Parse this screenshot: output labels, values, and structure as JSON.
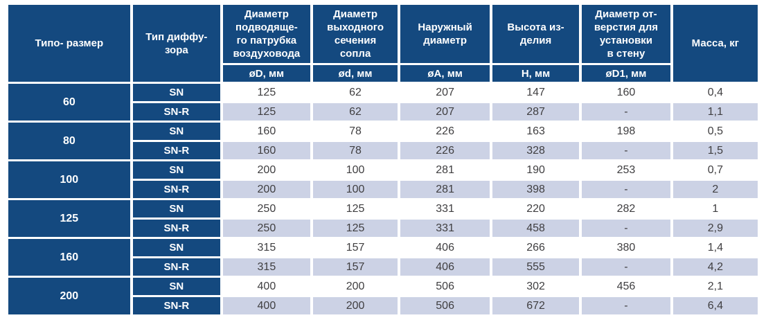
{
  "colors": {
    "header_bg": "#14497f",
    "header_text": "#ffffff",
    "row_plain_bg": "#ffffff",
    "row_alt_bg": "#ccd2e5",
    "value_text": "#3f3e40",
    "gap": "#ffffff"
  },
  "table": {
    "columns": [
      {
        "label": "Типо- размер",
        "unit": null
      },
      {
        "label": "Тип диффу-\nзора",
        "unit": null
      },
      {
        "label": "Диаметр\nподводяще-\nго патрубка\nвоздуховода",
        "unit": "øD, мм"
      },
      {
        "label": "Диаметр\nвыходного\nсечения\nсопла",
        "unit": "ød, мм"
      },
      {
        "label": "Наружный\nдиаметр",
        "unit": "øA, мм"
      },
      {
        "label": "Высота из-\nделия",
        "unit": "Н, мм"
      },
      {
        "label": "Диаметр от-\nверстия для\nустановки\nв стену",
        "unit": "øD1, мм"
      },
      {
        "label": "Масса, кг",
        "unit": null
      }
    ],
    "groups": [
      {
        "size": "60",
        "rows": [
          {
            "type": "SN",
            "values": [
              "125",
              "62",
              "207",
              "147",
              "160",
              "0,4"
            ]
          },
          {
            "type": "SN-R",
            "values": [
              "125",
              "62",
              "207",
              "287",
              "-",
              "1,1"
            ]
          }
        ]
      },
      {
        "size": "80",
        "rows": [
          {
            "type": "SN",
            "values": [
              "160",
              "78",
              "226",
              "163",
              "198",
              "0,5"
            ]
          },
          {
            "type": "SN-R",
            "values": [
              "160",
              "78",
              "226",
              "328",
              "-",
              "1,5"
            ]
          }
        ]
      },
      {
        "size": "100",
        "rows": [
          {
            "type": "SN",
            "values": [
              "200",
              "100",
              "281",
              "190",
              "253",
              "0,7"
            ]
          },
          {
            "type": "SN-R",
            "values": [
              "200",
              "100",
              "281",
              "398",
              "-",
              "2"
            ]
          }
        ]
      },
      {
        "size": "125",
        "rows": [
          {
            "type": "SN",
            "values": [
              "250",
              "125",
              "331",
              "220",
              "282",
              "1"
            ]
          },
          {
            "type": "SN-R",
            "values": [
              "250",
              "125",
              "331",
              "458",
              "-",
              "2,9"
            ]
          }
        ]
      },
      {
        "size": "160",
        "rows": [
          {
            "type": "SN",
            "values": [
              "315",
              "157",
              "406",
              "266",
              "380",
              "1,4"
            ]
          },
          {
            "type": "SN-R",
            "values": [
              "315",
              "157",
              "406",
              "555",
              "-",
              "4,2"
            ]
          }
        ]
      },
      {
        "size": "200",
        "rows": [
          {
            "type": "SN",
            "values": [
              "400",
              "200",
              "506",
              "302",
              "456",
              "2,1"
            ]
          },
          {
            "type": "SN-R",
            "values": [
              "400",
              "200",
              "506",
              "672",
              "-",
              "6,4"
            ]
          }
        ]
      }
    ]
  },
  "chart_data": {
    "type": "table",
    "columns": [
      "Типо- размер",
      "Тип диффузора",
      "Диаметр подводящего патрубка воздуховода, øD, мм",
      "Диаметр выходного сечения сопла, ød, мм",
      "Наружный диаметр, øA, мм",
      "Высота изделия, Н, мм",
      "Диаметр отверстия для установки в стену, øD1, мм",
      "Масса, кг"
    ],
    "rows": [
      [
        "60",
        "SN",
        "125",
        "62",
        "207",
        "147",
        "160",
        "0,4"
      ],
      [
        "60",
        "SN-R",
        "125",
        "62",
        "207",
        "287",
        "-",
        "1,1"
      ],
      [
        "80",
        "SN",
        "160",
        "78",
        "226",
        "163",
        "198",
        "0,5"
      ],
      [
        "80",
        "SN-R",
        "160",
        "78",
        "226",
        "328",
        "-",
        "1,5"
      ],
      [
        "100",
        "SN",
        "200",
        "100",
        "281",
        "190",
        "253",
        "0,7"
      ],
      [
        "100",
        "SN-R",
        "200",
        "100",
        "281",
        "398",
        "-",
        "2"
      ],
      [
        "125",
        "SN",
        "250",
        "125",
        "331",
        "220",
        "282",
        "1"
      ],
      [
        "125",
        "SN-R",
        "250",
        "125",
        "331",
        "458",
        "-",
        "2,9"
      ],
      [
        "160",
        "SN",
        "315",
        "157",
        "406",
        "266",
        "380",
        "1,4"
      ],
      [
        "160",
        "SN-R",
        "315",
        "157",
        "406",
        "555",
        "-",
        "4,2"
      ],
      [
        "200",
        "SN",
        "400",
        "200",
        "506",
        "302",
        "456",
        "2,1"
      ],
      [
        "200",
        "SN-R",
        "400",
        "200",
        "506",
        "672",
        "-",
        "6,4"
      ]
    ]
  }
}
